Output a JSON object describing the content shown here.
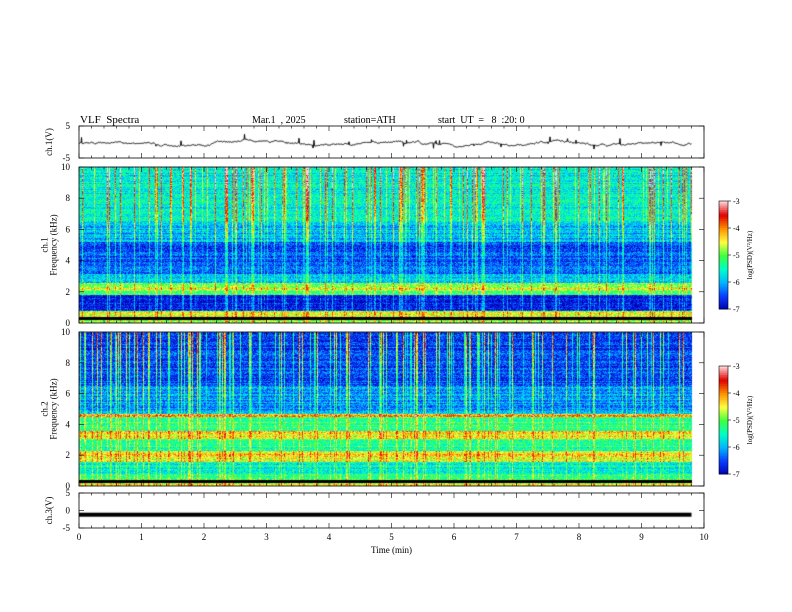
{
  "header": {
    "title": "VLF  Spectra",
    "date": "Mar.1  , 2025",
    "station": "station=ATH",
    "start": "start  UT  =   8  :20: 0"
  },
  "colors": {
    "colormap": [
      "#0000b0",
      "#0a3cff",
      "#00b4ff",
      "#00ffc8",
      "#40ff40",
      "#ffff40",
      "#ff9000",
      "#e00000",
      "#ffd2d2"
    ],
    "trace": "#000000",
    "frame": "#000000"
  },
  "chart_data": [
    {
      "type": "line",
      "panel": "ch1-waveform",
      "ylabel": "ch.1(V)",
      "ylim": [
        -5,
        5
      ],
      "yticks": [
        "5",
        "-5"
      ],
      "description_values": {
        "mean": 0,
        "amplitude_range": [
          -1.5,
          1.5
        ]
      },
      "x_end_min": 9.8
    },
    {
      "type": "heatmap",
      "panel": "ch1-spectrogram",
      "ylabel": "ch.1\nFrequency  (kHz)",
      "ylim": [
        0,
        10
      ],
      "yticks": [
        "0",
        "2",
        "4",
        "6",
        "8",
        "10"
      ],
      "colorbar": {
        "label": "log(PSD)(V²/Hz)",
        "ticks": [
          "-3",
          "-4",
          "-5",
          "-6",
          "-7"
        ],
        "range": [
          -7,
          -3
        ]
      },
      "x_end_min": 9.8
    },
    {
      "type": "heatmap",
      "panel": "ch2-spectrogram",
      "ylabel": "ch.2\nFrequency  (kHz)",
      "ylim": [
        0,
        10
      ],
      "yticks": [
        "0",
        "2",
        "4",
        "6",
        "8",
        "10"
      ],
      "colorbar": {
        "label": "log(PSD)(V²/Hz)",
        "ticks": [
          "-3",
          "-4",
          "-5",
          "-6",
          "-7"
        ],
        "range": [
          -7,
          -3
        ]
      },
      "x_end_min": 9.8
    },
    {
      "type": "line",
      "panel": "ch3-waveform",
      "ylabel": "ch.3(V)",
      "ylim": [
        -5,
        5
      ],
      "yticks": [
        "5",
        "0",
        "-5"
      ],
      "values": {
        "constant_level": -1.2
      },
      "x_end_min": 9.8
    }
  ],
  "xaxis": {
    "label": "Time  (min)",
    "ticks": [
      "0",
      "1",
      "2",
      "3",
      "4",
      "5",
      "6",
      "7",
      "8",
      "9",
      "10"
    ],
    "range": [
      0,
      10
    ]
  }
}
